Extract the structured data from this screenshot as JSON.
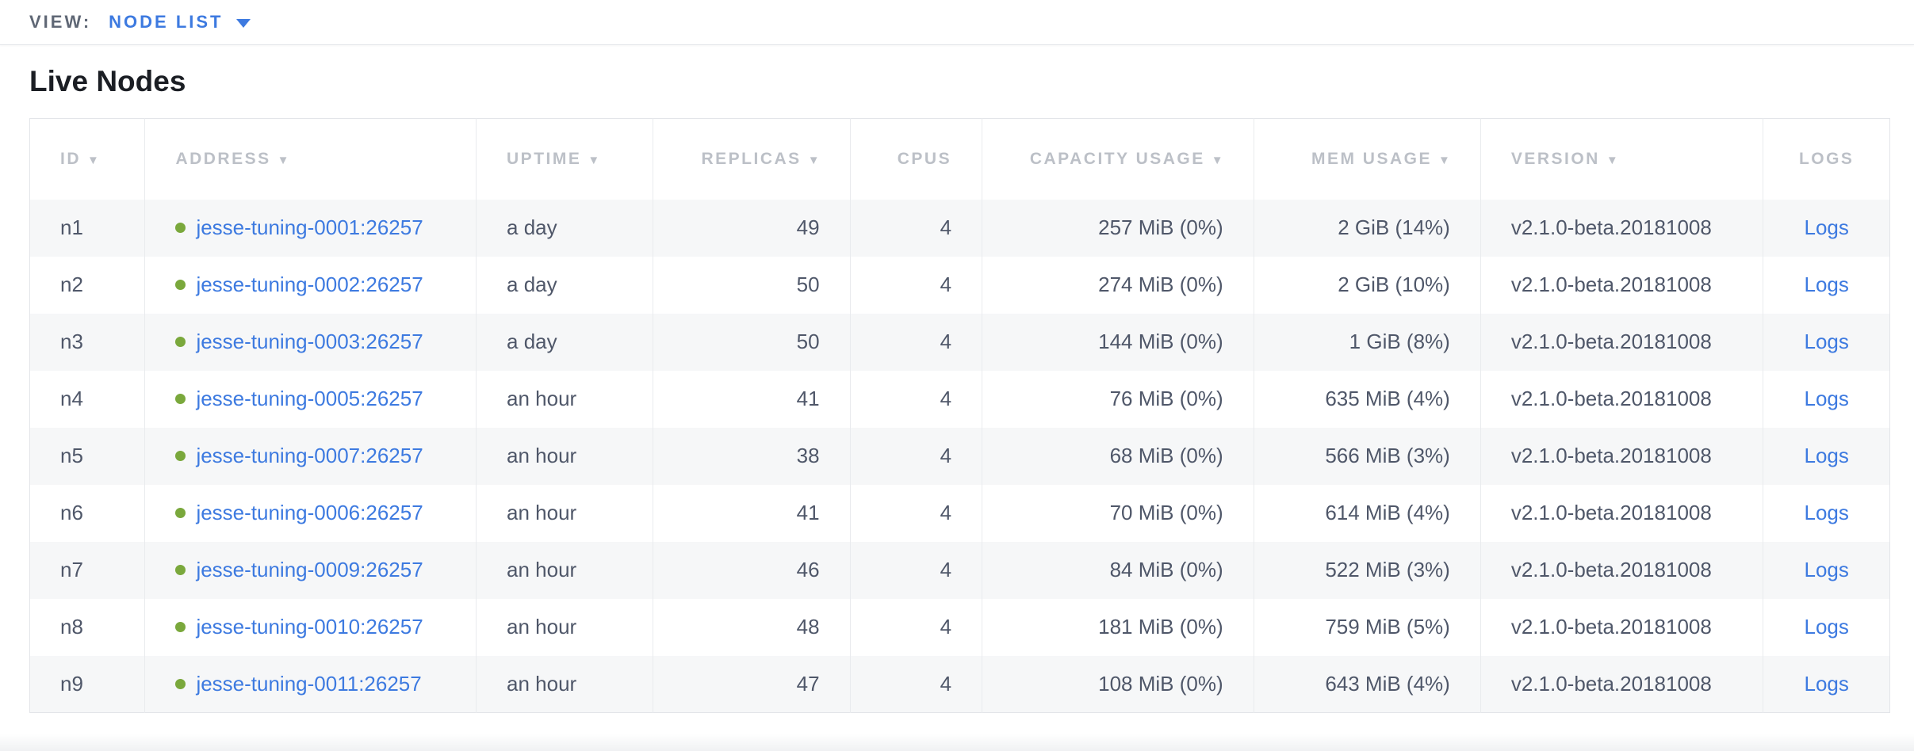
{
  "view_bar": {
    "label": "VIEW:",
    "selected": "NODE LIST"
  },
  "section": {
    "title": "Live Nodes"
  },
  "colors": {
    "link": "#3d7ae0",
    "healthy_dot": "#7aa83c",
    "cell_text": "#4f5769",
    "header_text": "#bcc0c7"
  },
  "table": {
    "columns": [
      {
        "key": "id",
        "label": "ID",
        "sortable": true,
        "align": "left",
        "width": "6.2%"
      },
      {
        "key": "address",
        "label": "ADDRESS",
        "sortable": true,
        "align": "left",
        "width": "17.8%"
      },
      {
        "key": "uptime",
        "label": "UPTIME",
        "sortable": true,
        "align": "left",
        "width": "9.5%"
      },
      {
        "key": "replicas",
        "label": "REPLICAS",
        "sortable": true,
        "align": "right",
        "width": "10.6%"
      },
      {
        "key": "cpus",
        "label": "CPUS",
        "sortable": false,
        "align": "right",
        "width": "7.1%"
      },
      {
        "key": "capacity",
        "label": "CAPACITY USAGE",
        "sortable": true,
        "align": "right",
        "width": "14.6%"
      },
      {
        "key": "mem",
        "label": "MEM USAGE",
        "sortable": true,
        "align": "right",
        "width": "12.2%"
      },
      {
        "key": "version",
        "label": "VERSION",
        "sortable": true,
        "align": "left",
        "width": "15.2%"
      },
      {
        "key": "logs",
        "label": "LOGS",
        "sortable": false,
        "align": "center",
        "width": "6.8%"
      }
    ],
    "rows": [
      {
        "id": "n1",
        "address": "jesse-tuning-0001:26257",
        "uptime": "a day",
        "replicas": "49",
        "cpus": "4",
        "capacity": "257 MiB (0%)",
        "mem": "2 GiB (14%)",
        "version": "v2.1.0-beta.20181008",
        "logs": "Logs"
      },
      {
        "id": "n2",
        "address": "jesse-tuning-0002:26257",
        "uptime": "a day",
        "replicas": "50",
        "cpus": "4",
        "capacity": "274 MiB (0%)",
        "mem": "2 GiB (10%)",
        "version": "v2.1.0-beta.20181008",
        "logs": "Logs"
      },
      {
        "id": "n3",
        "address": "jesse-tuning-0003:26257",
        "uptime": "a day",
        "replicas": "50",
        "cpus": "4",
        "capacity": "144 MiB (0%)",
        "mem": "1 GiB (8%)",
        "version": "v2.1.0-beta.20181008",
        "logs": "Logs"
      },
      {
        "id": "n4",
        "address": "jesse-tuning-0005:26257",
        "uptime": "an hour",
        "replicas": "41",
        "cpus": "4",
        "capacity": "76 MiB (0%)",
        "mem": "635 MiB (4%)",
        "version": "v2.1.0-beta.20181008",
        "logs": "Logs"
      },
      {
        "id": "n5",
        "address": "jesse-tuning-0007:26257",
        "uptime": "an hour",
        "replicas": "38",
        "cpus": "4",
        "capacity": "68 MiB (0%)",
        "mem": "566 MiB (3%)",
        "version": "v2.1.0-beta.20181008",
        "logs": "Logs"
      },
      {
        "id": "n6",
        "address": "jesse-tuning-0006:26257",
        "uptime": "an hour",
        "replicas": "41",
        "cpus": "4",
        "capacity": "70 MiB (0%)",
        "mem": "614 MiB (4%)",
        "version": "v2.1.0-beta.20181008",
        "logs": "Logs"
      },
      {
        "id": "n7",
        "address": "jesse-tuning-0009:26257",
        "uptime": "an hour",
        "replicas": "46",
        "cpus": "4",
        "capacity": "84 MiB (0%)",
        "mem": "522 MiB (3%)",
        "version": "v2.1.0-beta.20181008",
        "logs": "Logs"
      },
      {
        "id": "n8",
        "address": "jesse-tuning-0010:26257",
        "uptime": "an hour",
        "replicas": "48",
        "cpus": "4",
        "capacity": "181 MiB (0%)",
        "mem": "759 MiB (5%)",
        "version": "v2.1.0-beta.20181008",
        "logs": "Logs"
      },
      {
        "id": "n9",
        "address": "jesse-tuning-0011:26257",
        "uptime": "an hour",
        "replicas": "47",
        "cpus": "4",
        "capacity": "108 MiB (0%)",
        "mem": "643 MiB (4%)",
        "version": "v2.1.0-beta.20181008",
        "logs": "Logs"
      }
    ]
  }
}
